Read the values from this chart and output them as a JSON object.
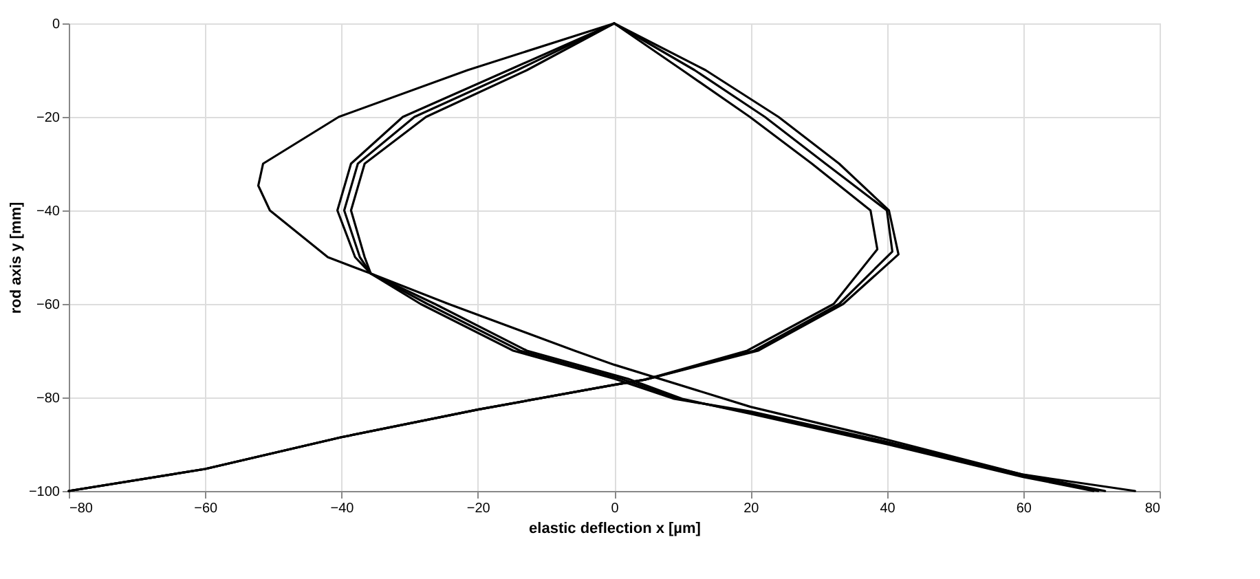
{
  "chart_data": {
    "type": "line",
    "xlabel": "elastic deflection x [µm]",
    "ylabel": "rod axis y [mm]",
    "xlim": [
      -80,
      80
    ],
    "ylim": [
      -100,
      0
    ],
    "xticks": [
      -80,
      -60,
      -40,
      -20,
      0,
      20,
      40,
      60,
      80
    ],
    "yticks": [
      -100,
      -80,
      -60,
      -40,
      -20,
      0
    ],
    "grid": true,
    "line_style": "solid",
    "series": [
      {
        "color": "#000000",
        "x": [
          0,
          -21.5,
          -40.4,
          -51.5,
          -52.2,
          -50.5,
          -42,
          -35.7,
          -24.3,
          -5.8,
          0,
          20,
          40,
          60,
          76.4
        ],
        "values": [
          0,
          -10,
          -20,
          -30,
          -34.7,
          -40,
          -50,
          -53.5,
          -60,
          -70,
          -73,
          -82,
          -89,
          -96.5,
          -100
        ]
      },
      {
        "color": "#000000",
        "x": [
          0,
          -15.5,
          -31,
          -38.6,
          -40.6,
          -38,
          -35.7,
          -28.4,
          -14.8,
          0,
          8.8,
          20,
          40,
          60,
          72
        ],
        "values": [
          0,
          -10,
          -20,
          -30,
          -40,
          -50,
          -53.5,
          -60,
          -70,
          -76,
          -80.3,
          -83,
          -89.5,
          -96.5,
          -100
        ]
      },
      {
        "color": "#000000",
        "x": [
          0,
          -14.2,
          -29.3,
          -37.6,
          -39.6,
          -37.3,
          -35.7,
          -27.4,
          -13.8,
          1,
          9.5,
          20,
          40,
          60,
          71
        ],
        "values": [
          0,
          -10,
          -20,
          -30,
          -40,
          -50,
          -53.5,
          -60,
          -70,
          -76,
          -80.3,
          -83.3,
          -89.8,
          -96.8,
          -100
        ]
      },
      {
        "color": "#000000",
        "x": [
          0,
          -12.8,
          -27.6,
          -36.6,
          -38.6,
          -36.6,
          -35.7,
          -26.3,
          -12.8,
          2,
          10,
          20,
          40,
          60,
          70.3
        ],
        "values": [
          0,
          -10,
          -20,
          -30,
          -40,
          -50,
          -53.5,
          -60,
          -70,
          -76,
          -80.3,
          -83.5,
          -90,
          -97,
          -100
        ]
      },
      {
        "color": "#000000",
        "x": [
          0,
          10,
          19.9,
          29,
          37.6,
          38.6,
          32.2,
          19.5,
          4.5,
          0,
          -20,
          -40,
          -60,
          -80
        ],
        "values": [
          0,
          -10,
          -20,
          -30,
          -40,
          -48.3,
          -60,
          -70,
          -76.2,
          -77.3,
          -82.6,
          -88.5,
          -95.3,
          -100
        ]
      },
      {
        "color": "#000000",
        "x": [
          0,
          11.8,
          22.1,
          31,
          40,
          40.8,
          33,
          20.5,
          4.5,
          0,
          -20,
          -40,
          -60,
          -80
        ],
        "values": [
          0,
          -10,
          -20,
          -30,
          -40,
          -48.8,
          -60,
          -70,
          -76.2,
          -77.3,
          -82.6,
          -88.5,
          -95.3,
          -100
        ]
      },
      {
        "color": "#000000",
        "x": [
          0,
          13.4,
          24.1,
          33,
          40.3,
          41.7,
          33.6,
          21.1,
          4.5,
          0,
          -20,
          -40,
          -60,
          -80
        ],
        "values": [
          0,
          -10,
          -20,
          -30,
          -40,
          -49.4,
          -60,
          -70,
          -76.2,
          -77.3,
          -82.6,
          -88.5,
          -95.3,
          -100
        ]
      }
    ]
  }
}
